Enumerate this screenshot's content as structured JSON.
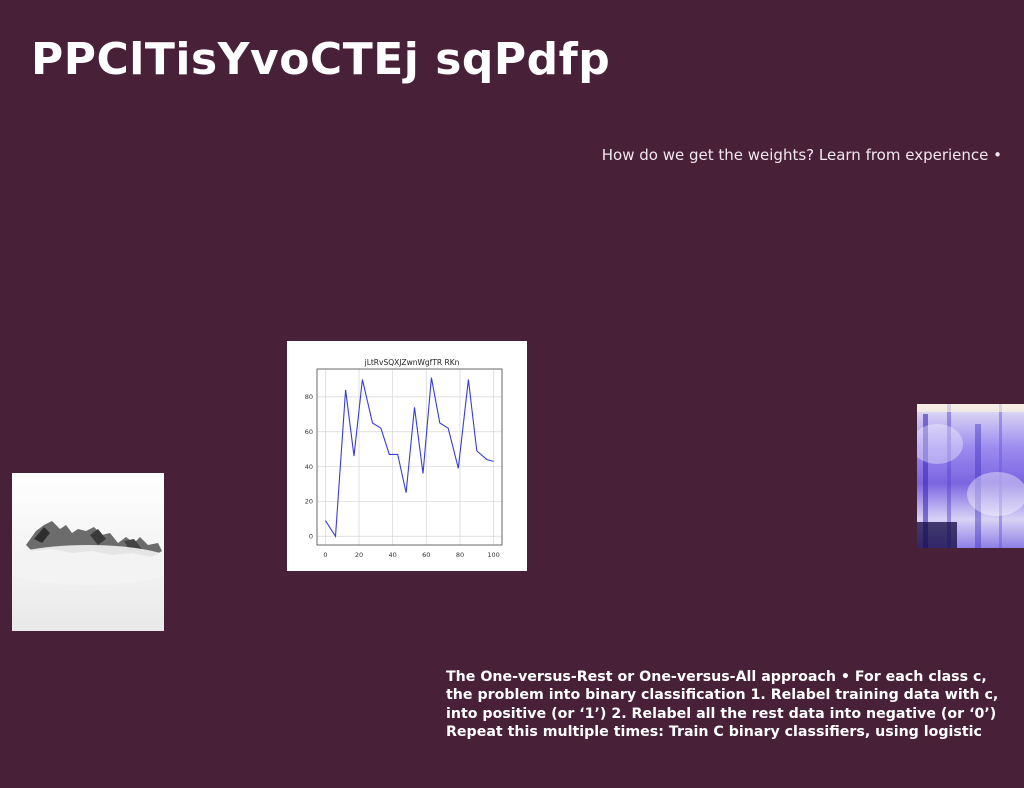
{
  "slide": {
    "title": "PPClTisYvoCTEj sqPdfp",
    "subtitle": "How do we get the weights? Learn from experience •",
    "body": "The One-versus-Rest or One-versus-All approach • For each class c, the problem into binary classification 1. Relabel training data with c, into positive (or ‘1’) 2. Relabel all the rest data into negative (or ‘0’) Repeat this multiple times: Train C binary classifiers, using logistic",
    "colors": {
      "background": "#482037",
      "text": "#ffffff",
      "line": "#3b3bd6"
    }
  },
  "chart_data": {
    "type": "line",
    "title": "jLtRvSQXJZwnWgfTR RKn",
    "xlabel": "",
    "ylabel": "",
    "xlim": [
      -5,
      105
    ],
    "ylim": [
      -5,
      96
    ],
    "xticks": [
      0,
      20,
      40,
      60,
      80,
      100
    ],
    "yticks": [
      0,
      20,
      40,
      60,
      80
    ],
    "grid": true,
    "series": [
      {
        "x": [
          0,
          6,
          12,
          17,
          22,
          28,
          33,
          38,
          43,
          48,
          53,
          58,
          63,
          68,
          73,
          79,
          85,
          90,
          96,
          100
        ],
        "values": [
          9,
          0,
          84,
          46,
          90,
          65,
          62,
          47,
          47,
          25,
          74,
          36,
          91,
          65,
          62,
          39,
          90,
          49,
          44,
          43
        ]
      }
    ]
  }
}
